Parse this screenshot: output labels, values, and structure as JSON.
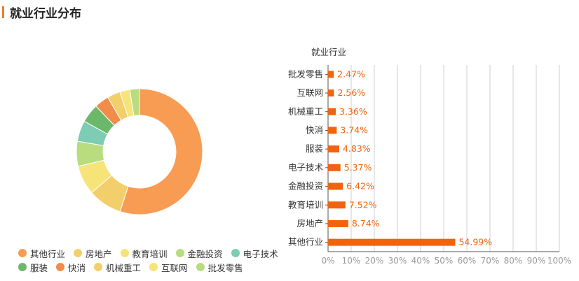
{
  "section_title": "就业行业分布",
  "chart_data": [
    {
      "type": "pie",
      "donut": true,
      "slices": [
        {
          "label": "其他行业",
          "value": 54.99,
          "color": "#f89b53"
        },
        {
          "label": "房地产",
          "value": 8.74,
          "color": "#f3cf6c"
        },
        {
          "label": "教育培训",
          "value": 7.52,
          "color": "#f6e478"
        },
        {
          "label": "金融投资",
          "value": 6.42,
          "color": "#b9dc7e"
        },
        {
          "label": "电子技术",
          "value": 5.37,
          "color": "#7dccb3"
        },
        {
          "label": "服装",
          "value": 4.83,
          "color": "#6cb86a"
        },
        {
          "label": "快消",
          "value": 3.74,
          "color": "#f28c4a"
        },
        {
          "label": "机械重工",
          "value": 3.36,
          "color": "#f3cf6c"
        },
        {
          "label": "互联网",
          "value": 2.56,
          "color": "#f6e478"
        },
        {
          "label": "批发零售",
          "value": 2.47,
          "color": "#b9dc7e"
        }
      ],
      "legend_rows": [
        [
          "其他行业",
          "房地产",
          "教育培训",
          "金融投资",
          "电子技术"
        ],
        [
          "服装",
          "快消",
          "机械重工",
          "互联网",
          "批发零售"
        ]
      ],
      "legend_position": "bottom-left"
    },
    {
      "type": "bar",
      "orientation": "horizontal",
      "title": "就业行业",
      "categories": [
        "批发零售",
        "互联网",
        "机械重工",
        "快消",
        "服装",
        "电子技术",
        "金融投资",
        "教育培训",
        "房地产",
        "其他行业"
      ],
      "values": [
        2.47,
        2.56,
        3.36,
        3.74,
        4.83,
        5.37,
        6.42,
        7.52,
        8.74,
        54.99
      ],
      "value_labels": [
        "2.47%",
        "2.56%",
        "3.36%",
        "3.74%",
        "4.83%",
        "5.37%",
        "6.42%",
        "7.52%",
        "8.74%",
        "54.99%"
      ],
      "xlim": [
        0,
        100
      ],
      "xticks": [
        "0%",
        "10%",
        "20%",
        "30%",
        "40%",
        "50%",
        "60%",
        "70%",
        "80%",
        "90%",
        "100%"
      ],
      "grid": true,
      "bar_color": "#f0640f",
      "label_color": "#f0640f"
    }
  ]
}
